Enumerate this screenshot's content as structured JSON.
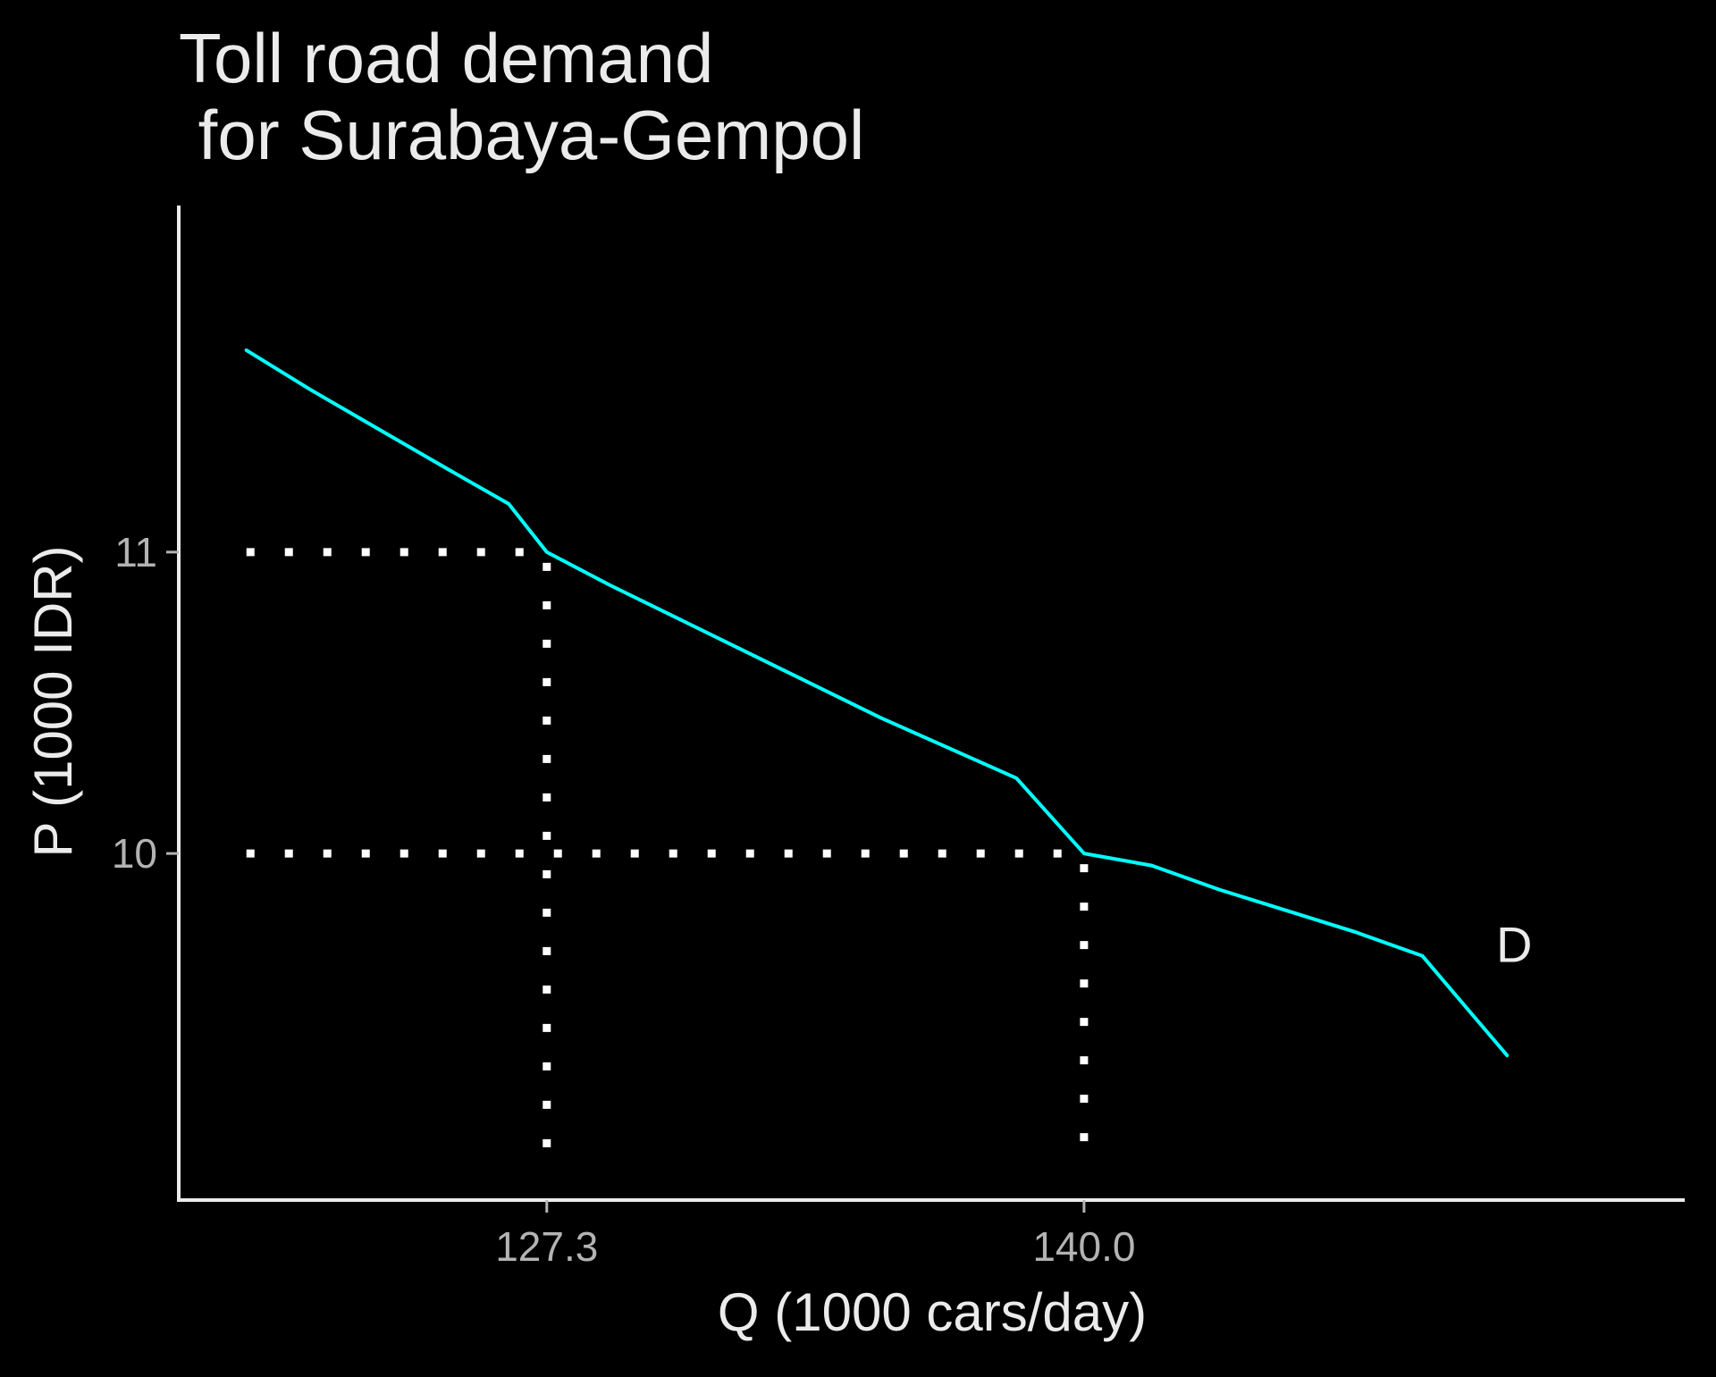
{
  "chart_data": {
    "type": "line",
    "title": "Toll road demand",
    "subtitle": " for Surabaya-Gempol",
    "xlabel": "Q (1000 cars/day)",
    "ylabel": "P (1000 IDR)",
    "xlim": [
      118.6,
      154.2
    ],
    "ylim": [
      8.85,
      12.15
    ],
    "x_ticks": [
      {
        "value": 127.3,
        "label": "127.3"
      },
      {
        "value": 140.0,
        "label": "140.0"
      }
    ],
    "y_ticks": [
      {
        "value": 11,
        "label": "11"
      },
      {
        "value": 10,
        "label": "10"
      }
    ],
    "grid": false,
    "series": [
      {
        "name": "D",
        "color": "#00FFFF",
        "x": [
          120.2,
          121.7,
          123.3,
          124.9,
          126.4,
          127.3,
          128.8,
          130.4,
          132.0,
          133.6,
          135.2,
          136.8,
          138.4,
          140.0,
          141.6,
          143.2,
          144.8,
          146.4,
          148.0,
          150.0
        ],
        "y": [
          11.67,
          11.54,
          11.41,
          11.28,
          11.16,
          11.0,
          10.89,
          10.78,
          10.67,
          10.56,
          10.45,
          10.35,
          10.25,
          10.0,
          9.96,
          9.88,
          9.81,
          9.74,
          9.66,
          9.33
        ]
      }
    ],
    "reference_points": [
      {
        "x": 127.3,
        "y": 11
      },
      {
        "x": 140.0,
        "y": 10
      }
    ],
    "annotations": [
      {
        "text": "D",
        "x": 150.0,
        "y": 9.7
      }
    ],
    "reference_line_color": "#FFFFFF",
    "axis_color": "#EBEBEB",
    "background": "#000000"
  }
}
